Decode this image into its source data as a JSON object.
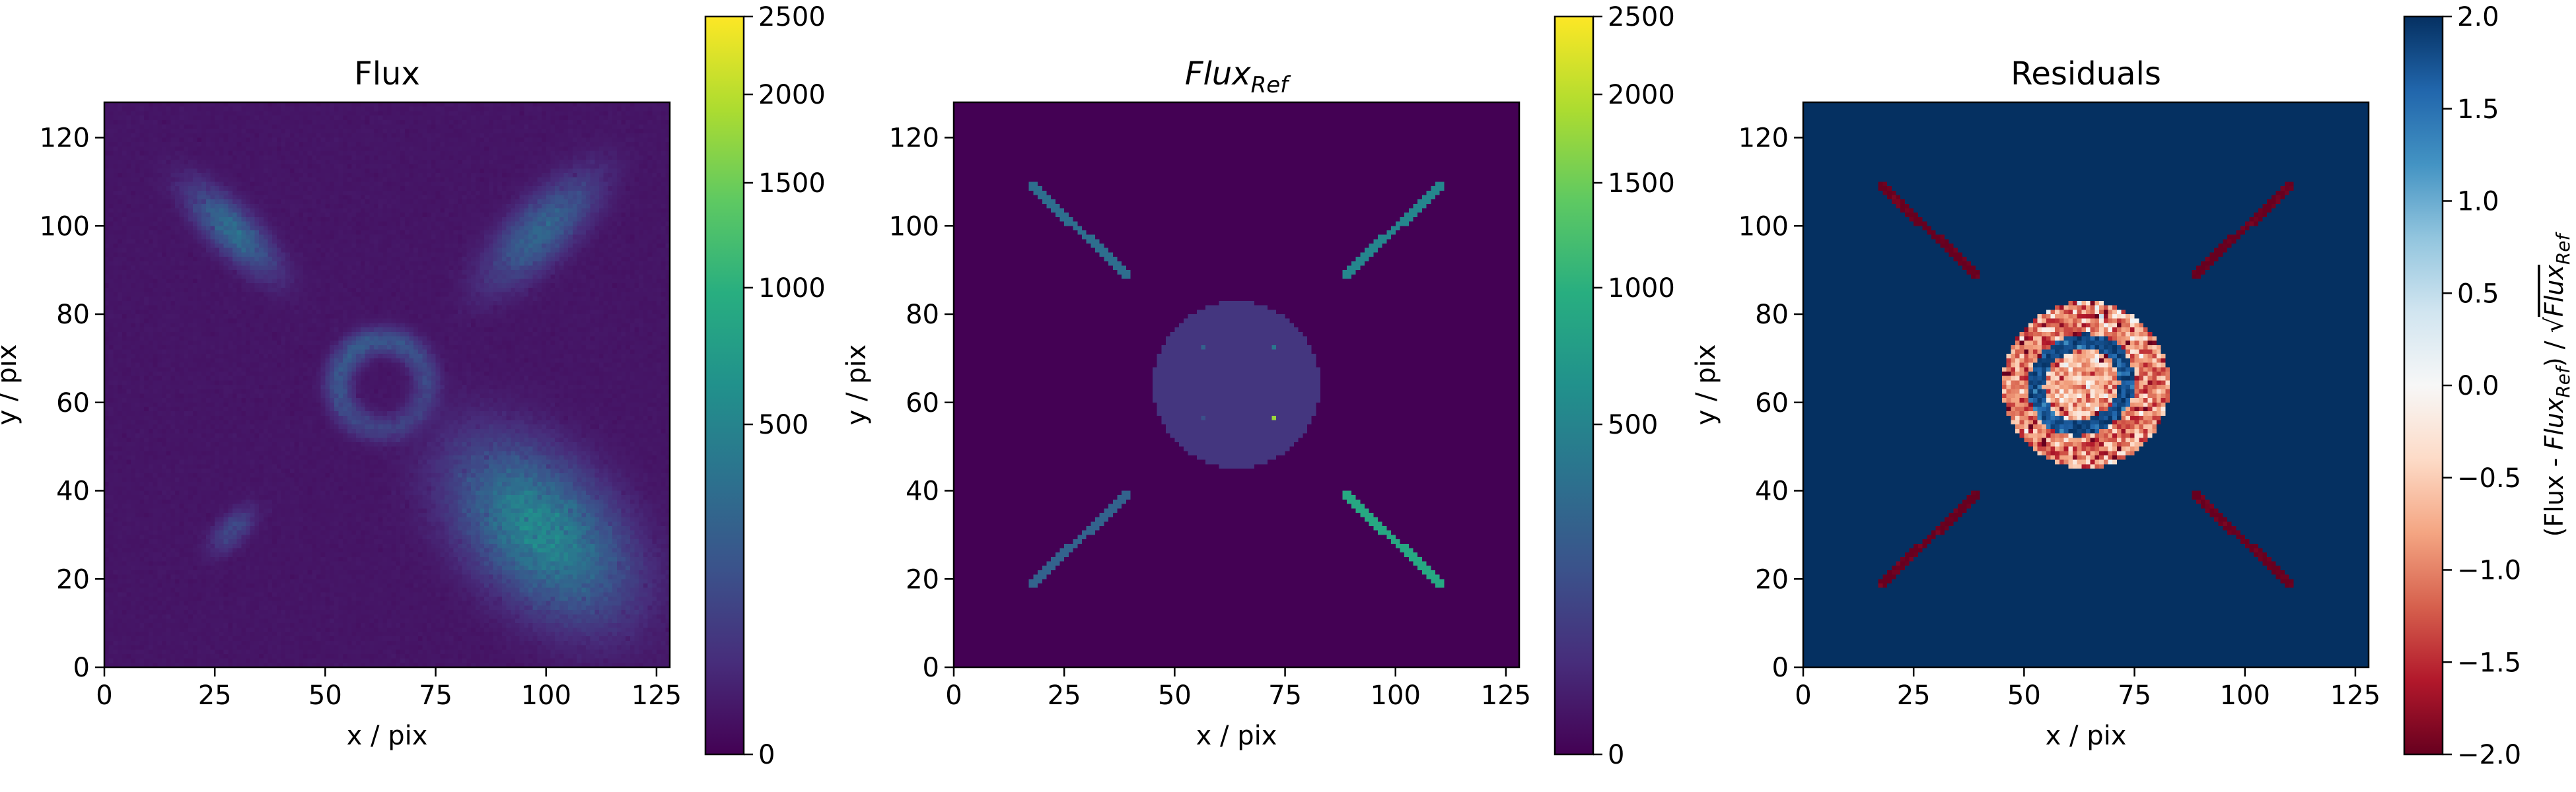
{
  "chart_data": [
    {
      "type": "heatmap",
      "title": "Flux",
      "xlabel": "x / pix",
      "ylabel": "y / pix",
      "xlim": [
        0,
        128
      ],
      "ylim": [
        0,
        128
      ],
      "xticks": [
        0,
        25,
        50,
        75,
        100,
        125
      ],
      "yticks": [
        0,
        20,
        40,
        60,
        80,
        100,
        120
      ],
      "colormap": "viridis",
      "colorbar": {
        "scale": "sqrt",
        "range": [
          0,
          2500
        ],
        "ticks": [
          0,
          500,
          1000,
          1500,
          2000,
          2500
        ],
        "label": ""
      },
      "features": [
        {
          "shape": "ellipse",
          "cx": 29,
          "cy": 99,
          "a": 12,
          "b": 4.5,
          "angle_deg": -45,
          "peak": 300
        },
        {
          "shape": "ellipse",
          "cx": 99,
          "cy": 99,
          "a": 15,
          "b": 6,
          "angle_deg": 45,
          "peak": 250
        },
        {
          "shape": "ellipse",
          "cx": 29,
          "cy": 31,
          "a": 6,
          "b": 3,
          "angle_deg": 45,
          "peak": 120
        },
        {
          "shape": "ellipse",
          "cx": 99,
          "cy": 31,
          "a": 21,
          "b": 13,
          "angle_deg": -45,
          "peak": 500
        },
        {
          "shape": "ring",
          "cx": 63,
          "cy": 64,
          "radius": 10,
          "width": 2.6,
          "peak": 180
        }
      ]
    },
    {
      "type": "heatmap",
      "title": "Flux",
      "title_sub": "Ref",
      "xlabel": "x / pix",
      "ylabel": "y / pix",
      "xlim": [
        0,
        128
      ],
      "ylim": [
        0,
        128
      ],
      "xticks": [
        0,
        25,
        50,
        75,
        100,
        125
      ],
      "yticks": [
        0,
        20,
        40,
        60,
        80,
        100,
        120
      ],
      "colormap": "viridis",
      "colorbar": {
        "scale": "sqrt",
        "range": [
          0,
          2500
        ],
        "ticks": [
          0,
          500,
          1000,
          1500,
          2000,
          2500
        ],
        "label": ""
      },
      "features": [
        {
          "shape": "line",
          "x1": 18,
          "y1": 109,
          "x2": 39,
          "y2": 89,
          "value": 320
        },
        {
          "shape": "line",
          "x1": 89,
          "y1": 89,
          "x2": 110,
          "y2": 109,
          "value": 520
        },
        {
          "shape": "line",
          "x1": 18,
          "y1": 19,
          "x2": 39,
          "y2": 39,
          "value": 250
        },
        {
          "shape": "line",
          "x1": 89,
          "y1": 39,
          "x2": 110,
          "y2": 19,
          "value": 900
        },
        {
          "shape": "disk",
          "cx": 64,
          "cy": 64,
          "radius": 19,
          "value": 60
        },
        {
          "shape": "point",
          "x": 56,
          "y": 72,
          "value": 250
        },
        {
          "shape": "point",
          "x": 72,
          "y": 72,
          "value": 400
        },
        {
          "shape": "point",
          "x": 56,
          "y": 56,
          "value": 150
        },
        {
          "shape": "point",
          "x": 72,
          "y": 56,
          "value": 1800
        }
      ]
    },
    {
      "type": "heatmap",
      "title": "Residuals",
      "xlabel": "x / pix",
      "ylabel": "y / pix",
      "xlim": [
        0,
        128
      ],
      "ylim": [
        0,
        128
      ],
      "xticks": [
        0,
        25,
        50,
        75,
        100,
        125
      ],
      "yticks": [
        0,
        20,
        40,
        60,
        80,
        100,
        120
      ],
      "colormap": "RdBu",
      "colorbar": {
        "scale": "linear",
        "range": [
          -2.0,
          2.0
        ],
        "ticks": [
          -2.0,
          -1.5,
          -1.0,
          -0.5,
          0.0,
          0.5,
          1.0,
          1.5,
          2.0
        ],
        "tick_labels": [
          "−2.0",
          "−1.5",
          "−1.0",
          "−0.5",
          "0.0",
          "0.5",
          "1.0",
          "1.5",
          "2.0"
        ],
        "label_parts": [
          "(Flux - ",
          "Flux",
          "Ref",
          ") / √",
          "Flux",
          "Ref"
        ]
      },
      "background_value": 2.0,
      "features": [
        {
          "shape": "line",
          "x1": 18,
          "y1": 109,
          "x2": 39,
          "y2": 89,
          "value": -2.0
        },
        {
          "shape": "line",
          "x1": 89,
          "y1": 89,
          "x2": 110,
          "y2": 109,
          "value": -2.0
        },
        {
          "shape": "line",
          "x1": 18,
          "y1": 19,
          "x2": 39,
          "y2": 39,
          "value": -2.0
        },
        {
          "shape": "line",
          "x1": 89,
          "y1": 39,
          "x2": 110,
          "y2": 19,
          "value": -2.0
        },
        {
          "shape": "disk",
          "cx": 64,
          "cy": 64,
          "radius": 19,
          "value": -1.0
        },
        {
          "shape": "ring",
          "cx": 63,
          "cy": 64,
          "radius": 10,
          "width": 3.5,
          "value": 2.0
        },
        {
          "shape": "disk",
          "cx": 63,
          "cy": 64,
          "radius": 7,
          "value": -0.7
        }
      ]
    }
  ]
}
